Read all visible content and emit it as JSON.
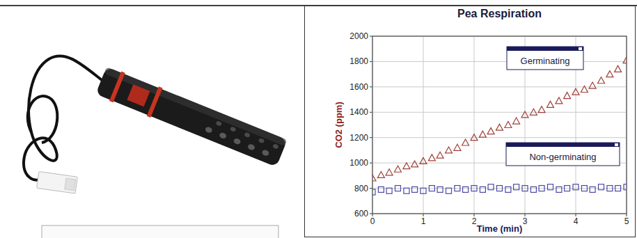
{
  "chart_data": {
    "type": "scatter",
    "title": "Pea Respiration",
    "x_label": "Time (min)",
    "y_label": "CO2 (ppm)",
    "x": [
      0,
      0.17,
      0.33,
      0.5,
      0.67,
      0.83,
      1,
      1.17,
      1.33,
      1.5,
      1.67,
      1.83,
      2,
      2.17,
      2.33,
      2.5,
      2.67,
      2.83,
      3,
      3.17,
      3.33,
      3.5,
      3.67,
      3.83,
      4,
      4.17,
      4.33,
      4.5,
      4.67,
      4.83,
      5
    ],
    "series": [
      {
        "name": "Germinating",
        "color": "#a0403a",
        "marker": "triangle",
        "values": [
          880,
          905,
          925,
          950,
          975,
          990,
          1015,
          1040,
          1060,
          1100,
          1120,
          1160,
          1200,
          1225,
          1250,
          1280,
          1300,
          1330,
          1380,
          1400,
          1420,
          1460,
          1490,
          1530,
          1560,
          1580,
          1610,
          1650,
          1700,
          1740,
          1810
        ]
      },
      {
        "name": "Non-germinating",
        "color": "#4a4aa8",
        "marker": "square",
        "values": [
          770,
          790,
          780,
          800,
          780,
          790,
          780,
          800,
          790,
          780,
          800,
          790,
          800,
          790,
          810,
          800,
          790,
          810,
          800,
          790,
          800,
          810,
          790,
          800,
          810,
          800,
          790,
          810,
          800,
          800,
          810
        ]
      }
    ],
    "xlim": [
      0,
      5
    ],
    "ylim": [
      600,
      2000
    ],
    "xticks": [
      0,
      1,
      2,
      3,
      4,
      5
    ],
    "yticks": [
      600,
      800,
      1000,
      1200,
      1400,
      1600,
      1800,
      2000
    ],
    "grid": true
  }
}
